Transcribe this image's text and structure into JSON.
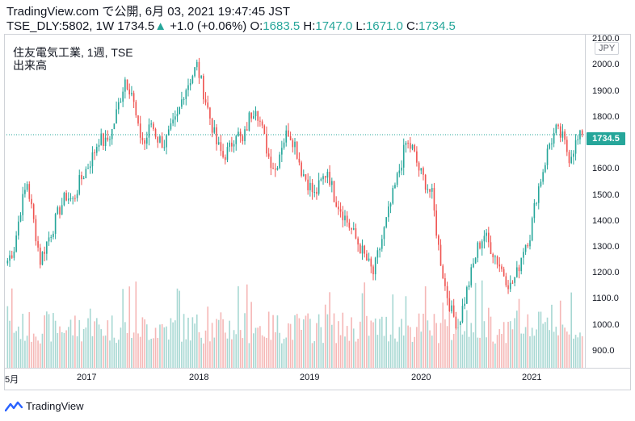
{
  "header": {
    "line1": "TradingView.com で公開, 6月 03, 2021 19:47:45 JST",
    "symbol": "TSE_DLY:5802, 1W",
    "last": "1734.5",
    "change": "+1.0 (+0.06%)",
    "o_label": "O:",
    "o_val": "1683.5",
    "h_label": "H:",
    "h_val": "1747.0",
    "l_label": "L:",
    "l_val": "1671.0",
    "c_label": "C:",
    "c_val": "1734.5"
  },
  "legend": {
    "title": "住友電気工業, 1週, TSE",
    "volume": "出来高"
  },
  "currency": "JPY",
  "price_tag": "1734.5",
  "footer": {
    "brand": "TradingView"
  },
  "colors": {
    "up": "#26a69a",
    "down": "#ef5350",
    "vol_up": "#a8d8d3",
    "vol_down": "#f5b7b6"
  },
  "chart_data": {
    "type": "candlestick",
    "x_ticks": [
      "5月",
      "2017",
      "2018",
      "2019",
      "2020",
      "2021"
    ],
    "y_ticks": [
      "900.0",
      "1000.0",
      "1100.0",
      "1200.0",
      "1300.0",
      "1400.0",
      "1500.0",
      "1600.0",
      "1700.0",
      "1800.0",
      "1900.0",
      "2000.0",
      "2100.0"
    ],
    "ylim": [
      850,
      2110
    ],
    "last_price": 1734.5,
    "approx_weekly_close": [
      1250,
      1300,
      1450,
      1550,
      1400,
      1250,
      1320,
      1380,
      1450,
      1500,
      1480,
      1550,
      1600,
      1650,
      1720,
      1700,
      1750,
      1850,
      1950,
      1900,
      1750,
      1700,
      1780,
      1720,
      1700,
      1750,
      1800,
      1900,
      1950,
      2000,
      1900,
      1800,
      1700,
      1650,
      1680,
      1750,
      1700,
      1800,
      1850,
      1750,
      1650,
      1600,
      1700,
      1750,
      1700,
      1600,
      1550,
      1500,
      1550,
      1600,
      1500,
      1450,
      1400,
      1350,
      1300,
      1250,
      1200,
      1300,
      1400,
      1500,
      1600,
      1700,
      1680,
      1600,
      1550,
      1500,
      1300,
      1150,
      1050,
      1000,
      1100,
      1200,
      1300,
      1350,
      1300,
      1250,
      1200,
      1150,
      1200,
      1300,
      1350,
      1500,
      1600,
      1700,
      1750,
      1720,
      1650,
      1700,
      1734.5
    ]
  }
}
